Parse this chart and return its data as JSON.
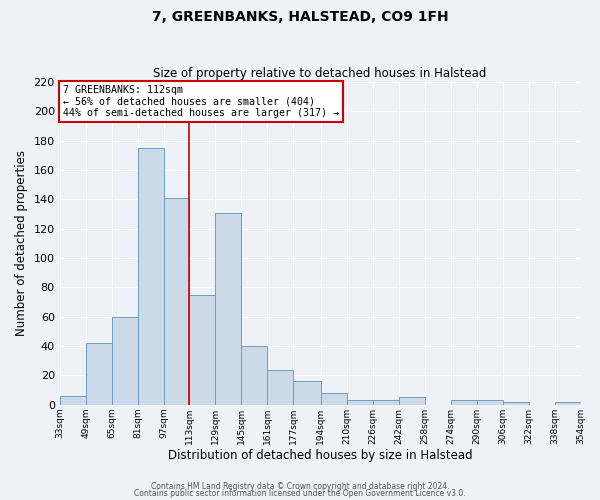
{
  "title": "7, GREENBANKS, HALSTEAD, CO9 1FH",
  "subtitle": "Size of property relative to detached houses in Halstead",
  "xlabel": "Distribution of detached houses by size in Halstead",
  "ylabel": "Number of detached properties",
  "bar_color": "#ccd9e8",
  "bar_edge_color": "#6a9fc0",
  "background_color": "#eef2f7",
  "grid_color": "#ffffff",
  "bin_edges": [
    33,
    49,
    65,
    81,
    97,
    113,
    129,
    145,
    161,
    177,
    194,
    210,
    226,
    242,
    258,
    274,
    290,
    306,
    322,
    338,
    354
  ],
  "bar_heights": [
    6,
    42,
    60,
    175,
    141,
    75,
    131,
    40,
    24,
    16,
    8,
    3,
    3,
    5,
    0,
    3,
    3,
    2,
    0,
    2
  ],
  "tick_labels": [
    "33sqm",
    "49sqm",
    "65sqm",
    "81sqm",
    "97sqm",
    "113sqm",
    "129sqm",
    "145sqm",
    "161sqm",
    "177sqm",
    "194sqm",
    "210sqm",
    "226sqm",
    "242sqm",
    "258sqm",
    "274sqm",
    "290sqm",
    "306sqm",
    "322sqm",
    "338sqm",
    "354sqm"
  ],
  "vline_x": 113,
  "vline_color": "#cc0000",
  "annotation_text": "7 GREENBANKS: 112sqm\n← 56% of detached houses are smaller (404)\n44% of semi-detached houses are larger (317) →",
  "annotation_box_color": "#cc0000",
  "ylim": [
    0,
    220
  ],
  "yticks": [
    0,
    20,
    40,
    60,
    80,
    100,
    120,
    140,
    160,
    180,
    200,
    220
  ],
  "footer_line1": "Contains HM Land Registry data © Crown copyright and database right 2024.",
  "footer_line2": "Contains public sector information licensed under the Open Government Licence v3.0."
}
